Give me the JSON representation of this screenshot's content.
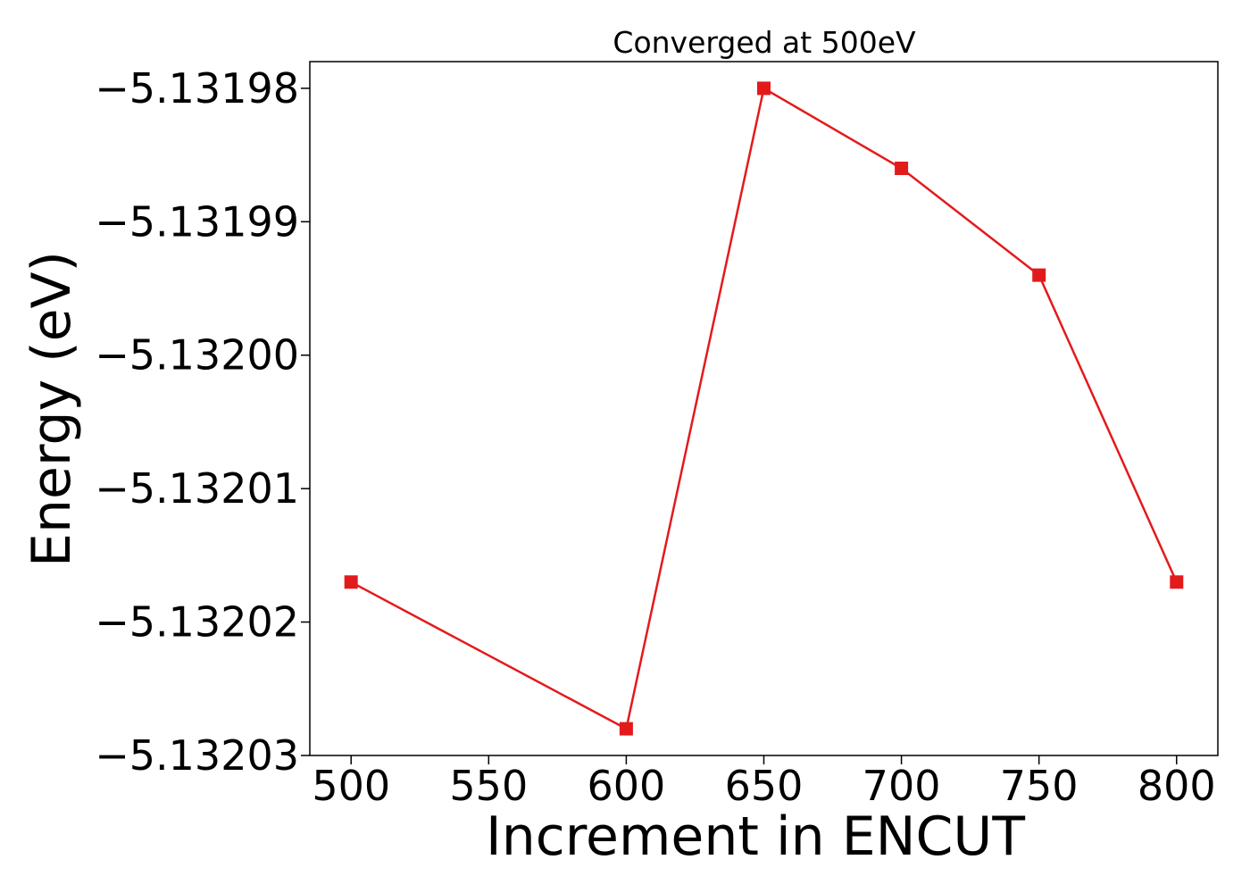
{
  "chart_data": {
    "type": "line",
    "title": "Converged at 500eV",
    "xlabel": "Increment in ENCUT",
    "ylabel": "Energy (eV)",
    "x": [
      500,
      600,
      650,
      700,
      750,
      800
    ],
    "series": [
      {
        "values": [
          -5.132017,
          -5.132028,
          -5.13198,
          -5.131986,
          -5.131994,
          -5.132017
        ],
        "color": "#e31a1c",
        "marker": "square"
      }
    ],
    "xlim": [
      485,
      815
    ],
    "ylim": [
      -5.13203,
      -5.131978
    ],
    "xticks": [
      500,
      550,
      600,
      650,
      700,
      750,
      800
    ],
    "xtick_labels": [
      "500",
      "550",
      "600",
      "650",
      "700",
      "750",
      "800"
    ],
    "yticks": [
      -5.13203,
      -5.13202,
      -5.13201,
      -5.132,
      -5.13199,
      -5.13198
    ],
    "ytick_labels": [
      "−5.13203",
      "−5.13202",
      "−5.13201",
      "−5.13200",
      "−5.13199",
      "−5.13198"
    ],
    "grid": false,
    "legend": "none"
  }
}
